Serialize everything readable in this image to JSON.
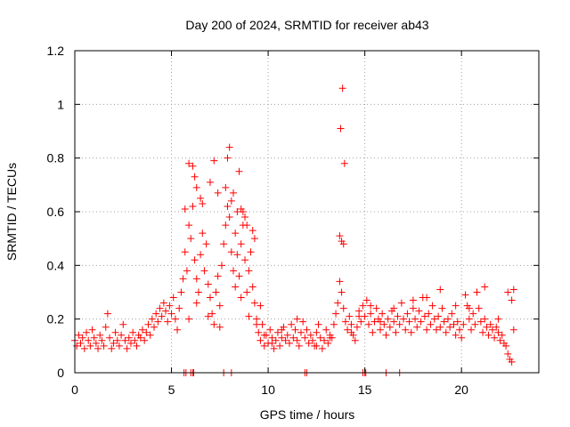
{
  "chart_data": {
    "type": "scatter",
    "title": "Day 200 of 2024, SRMTID for receiver ab43",
    "xlabel": "GPS time / hours",
    "ylabel": "SRMTID / TECUs",
    "xlim": [
      0,
      24
    ],
    "ylim": [
      0,
      1.2
    ],
    "xticks": [
      0,
      5,
      10,
      15,
      20
    ],
    "xtick_labels": [
      "0",
      "5",
      "10",
      "15",
      "20"
    ],
    "yticks": [
      0,
      0.2,
      0.4,
      0.6,
      0.8,
      1.0,
      1.2
    ],
    "ytick_labels": [
      "0",
      "0.2",
      "0.4",
      "0.6",
      "0.8",
      "1",
      "1.2"
    ],
    "grid": true,
    "marker": "plus",
    "color": "#ff0000",
    "series": [
      {
        "name": "SRMTID",
        "x": [
          0.0,
          0.1,
          0.2,
          0.3,
          0.4,
          0.5,
          0.6,
          0.7,
          0.8,
          0.9,
          1.0,
          1.1,
          1.2,
          1.3,
          1.4,
          1.5,
          1.6,
          1.7,
          1.8,
          1.9,
          2.0,
          2.1,
          2.2,
          2.3,
          2.4,
          2.5,
          2.6,
          2.7,
          2.8,
          2.9,
          3.0,
          3.1,
          3.2,
          3.3,
          3.4,
          3.5,
          3.6,
          3.7,
          3.8,
          3.9,
          4.0,
          4.1,
          4.2,
          4.3,
          4.4,
          4.5,
          4.6,
          4.7,
          4.8,
          4.9,
          5.0,
          5.1,
          5.2,
          5.3,
          5.4,
          5.5,
          5.6,
          5.7,
          5.8,
          5.9,
          6.0,
          6.1,
          6.2,
          6.3,
          6.4,
          6.5,
          6.6,
          6.7,
          6.8,
          6.9,
          7.0,
          7.1,
          7.2,
          7.3,
          7.4,
          7.5,
          7.6,
          7.7,
          7.8,
          7.9,
          8.0,
          8.1,
          8.2,
          8.3,
          8.4,
          8.5,
          8.6,
          8.7,
          8.8,
          8.9,
          9.0,
          9.1,
          9.2,
          9.3,
          9.4,
          9.5,
          9.6,
          9.7,
          9.8,
          9.9,
          10.0,
          10.1,
          10.2,
          10.3,
          10.4,
          10.5,
          10.6,
          10.7,
          10.8,
          10.9,
          11.0,
          11.1,
          11.2,
          11.3,
          11.4,
          11.5,
          11.6,
          11.7,
          11.8,
          11.9,
          12.0,
          12.1,
          12.2,
          12.3,
          12.4,
          12.5,
          12.6,
          12.7,
          12.8,
          12.9,
          13.0,
          13.1,
          13.2,
          13.3,
          13.4,
          13.5,
          13.6,
          13.7,
          13.8,
          13.9,
          14.0,
          14.1,
          14.2,
          14.3,
          14.4,
          14.5,
          14.6,
          14.7,
          14.8,
          14.9,
          15.0,
          15.1,
          15.2,
          15.3,
          15.4,
          15.5,
          15.6,
          15.7,
          15.8,
          15.9,
          16.0,
          16.1,
          16.2,
          16.3,
          16.4,
          16.5,
          16.6,
          16.7,
          16.8,
          16.9,
          17.0,
          17.1,
          17.2,
          17.3,
          17.4,
          17.5,
          17.6,
          17.7,
          17.8,
          17.9,
          18.0,
          18.1,
          18.2,
          18.3,
          18.4,
          18.5,
          18.6,
          18.7,
          18.8,
          18.9,
          19.0,
          19.1,
          19.2,
          19.3,
          19.4,
          19.5,
          19.6,
          19.7,
          19.8,
          19.9,
          20.0,
          20.1,
          20.2,
          20.3,
          20.4,
          20.5,
          20.6,
          20.7,
          20.8,
          20.9,
          21.0,
          21.1,
          21.2,
          21.3,
          21.4,
          21.5,
          21.6,
          21.7,
          21.8,
          21.9,
          22.0,
          22.1,
          22.2,
          22.3,
          22.4,
          22.5,
          22.6,
          22.7,
          5.7,
          5.9,
          6.1,
          6.2,
          6.3,
          6.5,
          6.6,
          7.0,
          7.2,
          7.4,
          7.8,
          7.9,
          8.0,
          8.1,
          8.2,
          8.4,
          8.5,
          8.6,
          8.7,
          8.8,
          8.9,
          9.2,
          9.3,
          13.7,
          13.8,
          13.9,
          13.85,
          13.75,
          13.95,
          5.65,
          6.0,
          5.75,
          6.1,
          6.15,
          7.7,
          8.1,
          11.9,
          12.0,
          14.9,
          15.0,
          15.05,
          16.1,
          16.8,
          5.9,
          6.3,
          6.9,
          7.5,
          8.3,
          8.6,
          9.0,
          9.4,
          9.6,
          9.8,
          10.2,
          10.7,
          11.5,
          12.5,
          13.2,
          14.3,
          14.7,
          15.3,
          15.8,
          16.5,
          17.5,
          18.2,
          18.9,
          19.7,
          20.4,
          20.8,
          21.2,
          21.9,
          22.4,
          22.6,
          22.7
        ],
        "y": [
          0.12,
          0.1,
          0.14,
          0.11,
          0.13,
          0.09,
          0.15,
          0.12,
          0.1,
          0.16,
          0.13,
          0.11,
          0.09,
          0.14,
          0.12,
          0.1,
          0.17,
          0.22,
          0.13,
          0.09,
          0.11,
          0.15,
          0.12,
          0.1,
          0.14,
          0.18,
          0.12,
          0.09,
          0.13,
          0.11,
          0.15,
          0.12,
          0.1,
          0.14,
          0.13,
          0.16,
          0.12,
          0.15,
          0.18,
          0.14,
          0.2,
          0.17,
          0.22,
          0.19,
          0.24,
          0.21,
          0.26,
          0.23,
          0.19,
          0.25,
          0.22,
          0.28,
          0.2,
          0.16,
          0.24,
          0.3,
          0.35,
          0.45,
          0.38,
          0.55,
          0.5,
          0.62,
          0.42,
          0.35,
          0.3,
          0.44,
          0.52,
          0.38,
          0.48,
          0.33,
          0.28,
          0.22,
          0.18,
          0.3,
          0.36,
          0.25,
          0.4,
          0.48,
          0.55,
          0.62,
          0.58,
          0.45,
          0.38,
          0.52,
          0.44,
          0.36,
          0.48,
          0.55,
          0.42,
          0.3,
          0.38,
          0.45,
          0.32,
          0.26,
          0.2,
          0.15,
          0.12,
          0.18,
          0.1,
          0.14,
          0.11,
          0.16,
          0.13,
          0.09,
          0.12,
          0.15,
          0.1,
          0.13,
          0.17,
          0.12,
          0.14,
          0.11,
          0.18,
          0.13,
          0.16,
          0.12,
          0.1,
          0.15,
          0.19,
          0.13,
          0.16,
          0.11,
          0.14,
          0.12,
          0.1,
          0.15,
          0.18,
          0.13,
          0.09,
          0.12,
          0.16,
          0.11,
          0.14,
          0.13,
          0.18,
          0.22,
          0.26,
          0.34,
          0.3,
          0.24,
          0.19,
          0.16,
          0.21,
          0.18,
          0.14,
          0.12,
          0.17,
          0.23,
          0.19,
          0.25,
          0.21,
          0.27,
          0.18,
          0.22,
          0.15,
          0.19,
          0.24,
          0.2,
          0.16,
          0.22,
          0.18,
          0.14,
          0.2,
          0.17,
          0.23,
          0.19,
          0.15,
          0.21,
          0.18,
          0.26,
          0.2,
          0.16,
          0.22,
          0.19,
          0.15,
          0.24,
          0.2,
          0.17,
          0.23,
          0.19,
          0.28,
          0.21,
          0.16,
          0.22,
          0.18,
          0.25,
          0.2,
          0.16,
          0.21,
          0.17,
          0.24,
          0.19,
          0.15,
          0.2,
          0.17,
          0.22,
          0.18,
          0.14,
          0.19,
          0.16,
          0.13,
          0.18,
          0.29,
          0.25,
          0.2,
          0.16,
          0.22,
          0.18,
          0.3,
          0.24,
          0.19,
          0.15,
          0.2,
          0.17,
          0.14,
          0.18,
          0.16,
          0.13,
          0.17,
          0.15,
          0.12,
          0.14,
          0.11,
          0.1,
          0.07,
          0.05,
          0.04,
          0.16,
          0.61,
          0.78,
          0.77,
          0.73,
          0.69,
          0.65,
          0.63,
          0.71,
          0.79,
          0.67,
          0.69,
          0.8,
          0.84,
          0.64,
          0.67,
          0.6,
          0.75,
          0.61,
          0.6,
          0.58,
          0.55,
          0.53,
          0.5,
          0.51,
          0.49,
          0.48,
          1.06,
          0.91,
          0.78,
          0.0,
          0.0,
          0.0,
          0.0,
          0.0,
          0.0,
          0.0,
          0.0,
          0.0,
          0.0,
          0.0,
          0.0,
          0.0,
          0.0,
          0.2,
          0.26,
          0.21,
          0.17,
          0.32,
          0.28,
          0.21,
          0.18,
          0.25,
          0.14,
          0.11,
          0.16,
          0.2,
          0.1,
          0.13,
          0.15,
          0.21,
          0.25,
          0.19,
          0.24,
          0.27,
          0.28,
          0.31,
          0.25,
          0.24,
          0.3,
          0.32,
          0.2,
          0.3,
          0.27,
          0.31
        ]
      }
    ]
  }
}
